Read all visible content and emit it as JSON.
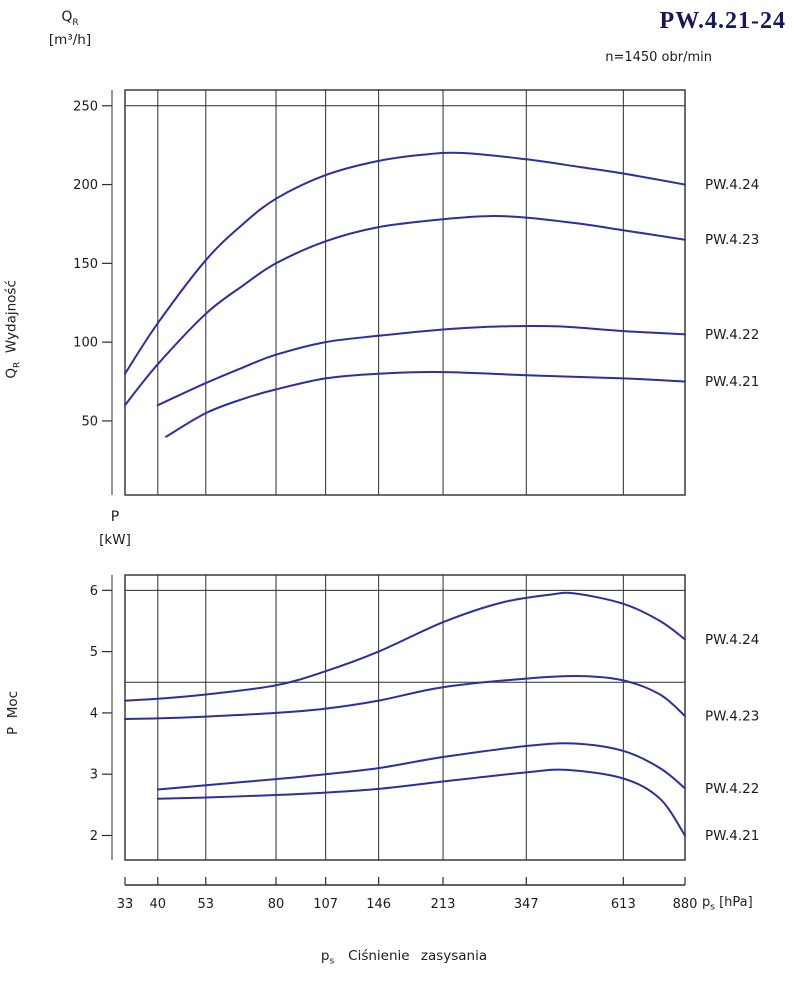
{
  "title": "PW.4.21-24",
  "speed_note": "n=1450 obr/min",
  "flow_symbol": "Q",
  "flow_symbol_sub": "R",
  "flow_unit": "[m³/h]",
  "flow_axis_word": "Wydajność",
  "power_symbol": "P",
  "power_unit": "[kW]",
  "power_axis_word": "Moc",
  "pressure_symbol": "p",
  "pressure_symbol_sub": "s",
  "pressure_unit": "[hPa]",
  "caption_word": "Ciśnienie  zasysania",
  "colors": {
    "curve": "#2a2fa8",
    "frame": "#2e2e2e",
    "text": "#1c1c1c",
    "title": "#17175e",
    "background": "#ffffff"
  },
  "chart_data": [
    {
      "type": "line",
      "name": "flow-chart",
      "title": "",
      "x_scale": "log",
      "xlim": [
        33,
        880
      ],
      "x_ticks": [
        33,
        40,
        53,
        80,
        107,
        146,
        213,
        347,
        613,
        880
      ],
      "ylim": [
        3,
        260
      ],
      "y_ticks": [
        50,
        100,
        150,
        200,
        250
      ],
      "h_gridlines": [
        250
      ],
      "xlabel": "p_s [hPa]",
      "ylabel": "Q_R Wydajność [m³/h]",
      "legend_position": "right",
      "series": [
        {
          "name": "PW.4.24",
          "points": [
            [
              33,
              80
            ],
            [
              40,
              112
            ],
            [
              53,
              152
            ],
            [
              66,
              175
            ],
            [
              80,
              191
            ],
            [
              107,
              206
            ],
            [
              146,
              215
            ],
            [
              190,
              219
            ],
            [
              240,
              220
            ],
            [
              347,
              216
            ],
            [
              480,
              211
            ],
            [
              613,
              207
            ],
            [
              880,
              200
            ]
          ]
        },
        {
          "name": "PW.4.23",
          "points": [
            [
              33,
              60
            ],
            [
              40,
              86
            ],
            [
              53,
              118
            ],
            [
              66,
              136
            ],
            [
              80,
              150
            ],
            [
              107,
              164
            ],
            [
              146,
              173
            ],
            [
              213,
              178
            ],
            [
              280,
              180
            ],
            [
              347,
              179
            ],
            [
              480,
              175
            ],
            [
              613,
              171
            ],
            [
              880,
              165
            ]
          ]
        },
        {
          "name": "PW.4.22",
          "points": [
            [
              40,
              60
            ],
            [
              53,
              74
            ],
            [
              66,
              84
            ],
            [
              80,
              92
            ],
            [
              107,
              100
            ],
            [
              146,
              104
            ],
            [
              213,
              108
            ],
            [
              300,
              110
            ],
            [
              420,
              110
            ],
            [
              613,
              107
            ],
            [
              880,
              105
            ]
          ]
        },
        {
          "name": "PW.4.21",
          "points": [
            [
              42,
              40
            ],
            [
              53,
              55
            ],
            [
              66,
              64
            ],
            [
              80,
              70
            ],
            [
              107,
              77
            ],
            [
              146,
              80
            ],
            [
              213,
              81
            ],
            [
              347,
              79
            ],
            [
              613,
              77
            ],
            [
              880,
              75
            ]
          ]
        }
      ]
    },
    {
      "type": "line",
      "name": "power-chart",
      "title": "",
      "x_scale": "log",
      "xlim": [
        33,
        880
      ],
      "x_ticks": [
        33,
        40,
        53,
        80,
        107,
        146,
        213,
        347,
        613,
        880
      ],
      "ylim": [
        1.6,
        6.25
      ],
      "y_ticks": [
        2,
        3,
        4,
        5,
        6
      ],
      "h_gridlines": [
        6,
        4.5
      ],
      "xlabel": "p_s [hPa]",
      "ylabel": "P Moc [kW]",
      "legend_position": "right",
      "series": [
        {
          "name": "PW.4.24",
          "points": [
            [
              33,
              4.2
            ],
            [
              40,
              4.23
            ],
            [
              53,
              4.3
            ],
            [
              80,
              4.45
            ],
            [
              107,
              4.68
            ],
            [
              146,
              5.0
            ],
            [
              213,
              5.48
            ],
            [
              300,
              5.8
            ],
            [
              400,
              5.93
            ],
            [
              460,
              5.95
            ],
            [
              613,
              5.78
            ],
            [
              760,
              5.5
            ],
            [
              880,
              5.2
            ]
          ]
        },
        {
          "name": "PW.4.23",
          "points": [
            [
              33,
              3.9
            ],
            [
              40,
              3.91
            ],
            [
              53,
              3.94
            ],
            [
              80,
              4.0
            ],
            [
              107,
              4.07
            ],
            [
              146,
              4.2
            ],
            [
              213,
              4.42
            ],
            [
              347,
              4.56
            ],
            [
              480,
              4.6
            ],
            [
              613,
              4.53
            ],
            [
              760,
              4.3
            ],
            [
              880,
              3.95
            ]
          ]
        },
        {
          "name": "PW.4.22",
          "points": [
            [
              40,
              2.75
            ],
            [
              53,
              2.82
            ],
            [
              80,
              2.92
            ],
            [
              107,
              3.0
            ],
            [
              146,
              3.1
            ],
            [
              213,
              3.28
            ],
            [
              347,
              3.46
            ],
            [
              460,
              3.5
            ],
            [
              613,
              3.38
            ],
            [
              760,
              3.1
            ],
            [
              880,
              2.77
            ]
          ]
        },
        {
          "name": "PW.4.21",
          "points": [
            [
              40,
              2.6
            ],
            [
              53,
              2.62
            ],
            [
              80,
              2.66
            ],
            [
              107,
              2.7
            ],
            [
              146,
              2.76
            ],
            [
              213,
              2.88
            ],
            [
              347,
              3.03
            ],
            [
              440,
              3.07
            ],
            [
              613,
              2.93
            ],
            [
              760,
              2.6
            ],
            [
              880,
              2.0
            ]
          ]
        }
      ]
    }
  ]
}
